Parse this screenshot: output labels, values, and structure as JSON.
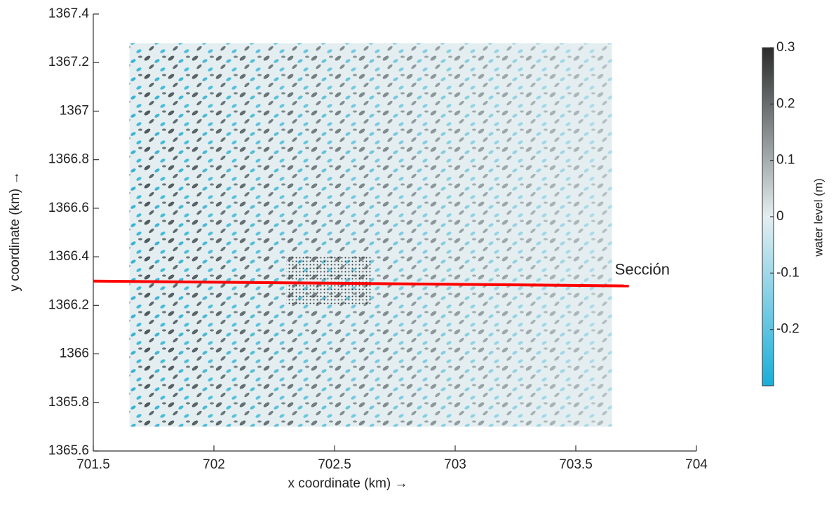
{
  "chart_data": {
    "type": "image",
    "xlabel": "x coordinate (km) →",
    "ylabel": "y coordinate (km) →",
    "xlim": [
      701.5,
      704
    ],
    "xticks": [
      701.5,
      702,
      702.5,
      703,
      703.5,
      704
    ],
    "ylim": [
      1365.6,
      1367.4
    ],
    "yticks": [
      1365.6,
      1365.8,
      1366,
      1366.2,
      1366.4,
      1366.6,
      1366.8,
      1367,
      1367.2,
      1367.4
    ],
    "image_extent": {
      "x": [
        701.65,
        703.65
      ],
      "y": [
        1365.7,
        1367.28
      ]
    },
    "point_grid": {
      "x": [
        702.3,
        702.65
      ],
      "y": [
        1366.2,
        1366.4
      ]
    },
    "section_line": {
      "label": "Sección",
      "color": "#ff0000",
      "x": [
        701.5,
        703.72
      ],
      "y": [
        1366.3,
        1366.28
      ]
    },
    "colorbar": {
      "label": "water level (m)",
      "clim": [
        -0.3,
        0.3
      ],
      "ticks": [
        0.3,
        0.2,
        0.1,
        0,
        -0.1,
        -0.2
      ],
      "colors": [
        "#19aed9",
        "#e4eef0",
        "#2b2b2b"
      ]
    }
  }
}
